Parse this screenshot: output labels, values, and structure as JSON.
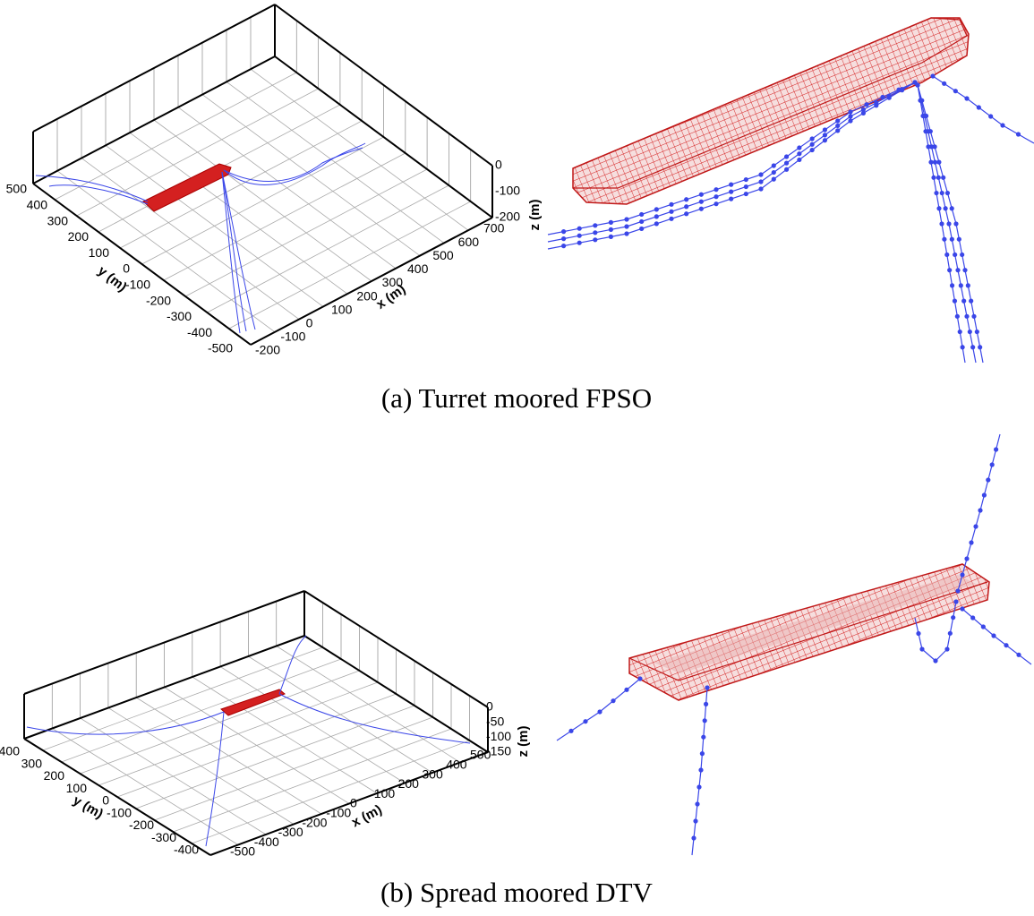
{
  "panels": [
    {
      "caption": "(a) Turret moored FPSO",
      "x_axis": {
        "label": "x (m)",
        "ticks": [
          -200,
          -100,
          0,
          100,
          200,
          300,
          400,
          500,
          600,
          700
        ]
      },
      "y_axis": {
        "label": "y (m)",
        "ticks": [
          500,
          400,
          300,
          200,
          100,
          0,
          -100,
          -200,
          -300,
          -400,
          -500
        ]
      },
      "z_axis": {
        "label": "z (m)",
        "ticks": [
          0,
          -100,
          -200
        ]
      }
    },
    {
      "caption": "(b) Spread moored DTV",
      "x_axis": {
        "label": "x (m)",
        "ticks": [
          -500,
          -400,
          -300,
          -200,
          -100,
          0,
          100,
          200,
          300,
          400,
          500
        ]
      },
      "y_axis": {
        "label": "y (m)",
        "ticks": [
          400,
          300,
          200,
          100,
          0,
          -100,
          -200,
          -300,
          -400
        ]
      },
      "z_axis": {
        "label": "z (m)",
        "ticks": [
          0,
          -50,
          -100,
          -150
        ]
      }
    }
  ]
}
